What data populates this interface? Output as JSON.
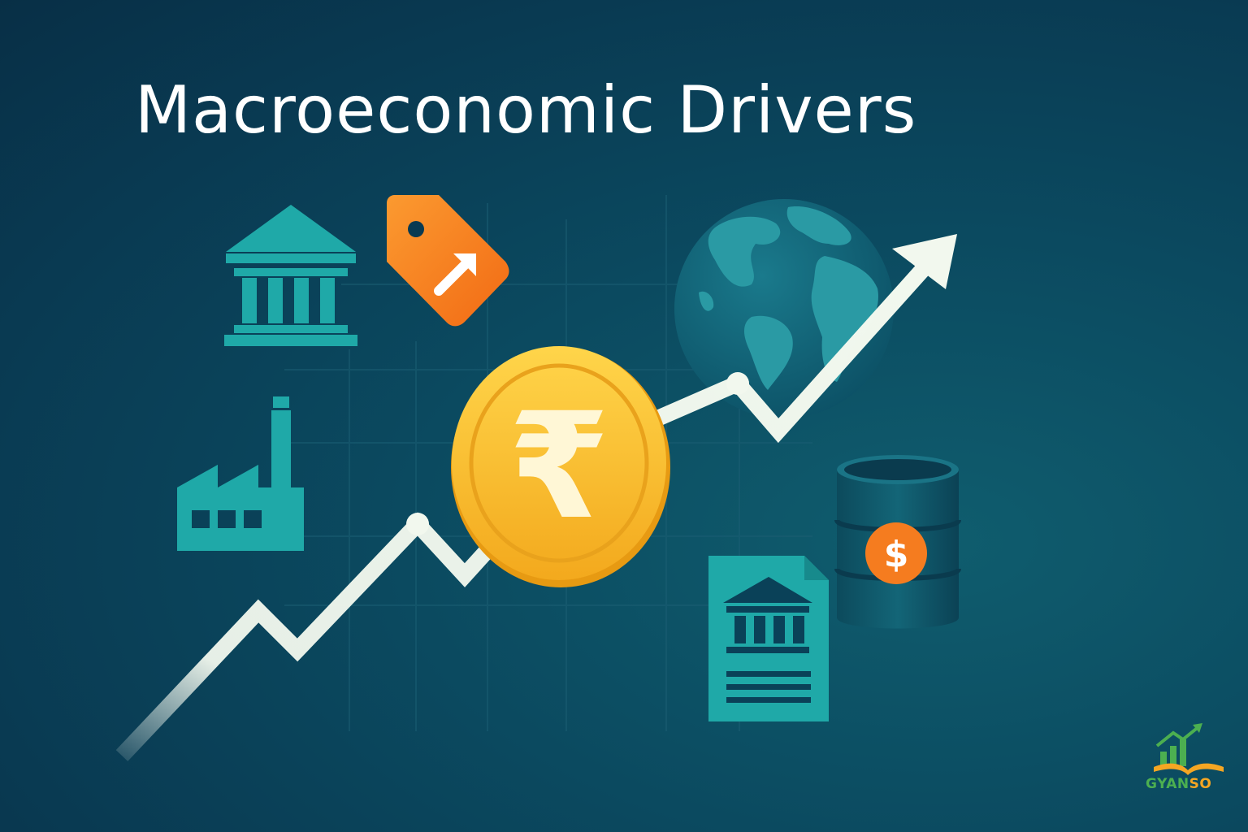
{
  "title": "Macroeconomic Drivers",
  "brand": {
    "part1": "GYAN",
    "part2": "SO"
  },
  "currency_symbol": "₹",
  "oil_symbol": "$",
  "icons": [
    "bank-icon",
    "price-tag-icon",
    "globe-icon",
    "factory-icon",
    "rupee-coin-icon",
    "oil-barrel-icon",
    "government-document-icon",
    "trend-arrow-icon"
  ],
  "colors": {
    "background": "#093a52",
    "teal": "#1fb2ad",
    "orange": "#f57c1f",
    "gold": "#f7b928",
    "line": "#f2f8ee"
  }
}
